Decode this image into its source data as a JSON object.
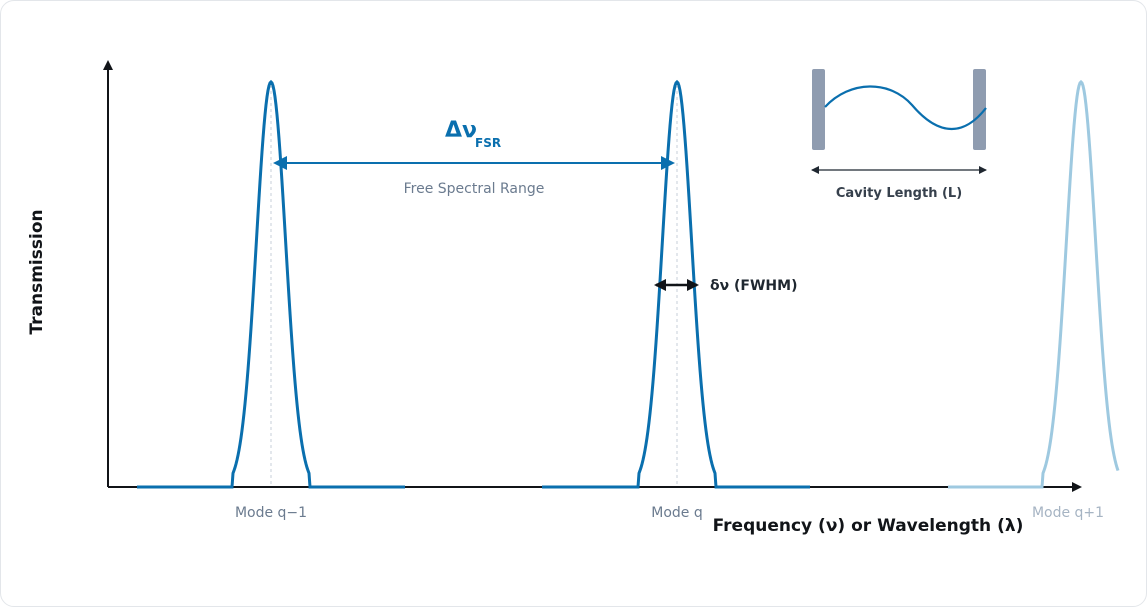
{
  "axes": {
    "y_label": "Transmission",
    "x_label": "Frequency (ν) or Wavelength (λ)"
  },
  "modes": [
    {
      "label": "Mode q−1",
      "emphasis": "primary"
    },
    {
      "label": "Mode q",
      "emphasis": "primary"
    },
    {
      "label": "Mode q+1",
      "emphasis": "faded"
    }
  ],
  "fsr": {
    "symbol": "Δν",
    "subscript": "FSR",
    "caption": "Free Spectral Range"
  },
  "fwhm": {
    "label": "δν (FWHM)"
  },
  "cavity": {
    "label": "Cavity Length (L)"
  },
  "colors": {
    "peak": "#0a6fae",
    "peak_faded": "#9ec9e0",
    "mirror": "#8f9cb0",
    "axis": "#111418"
  }
}
